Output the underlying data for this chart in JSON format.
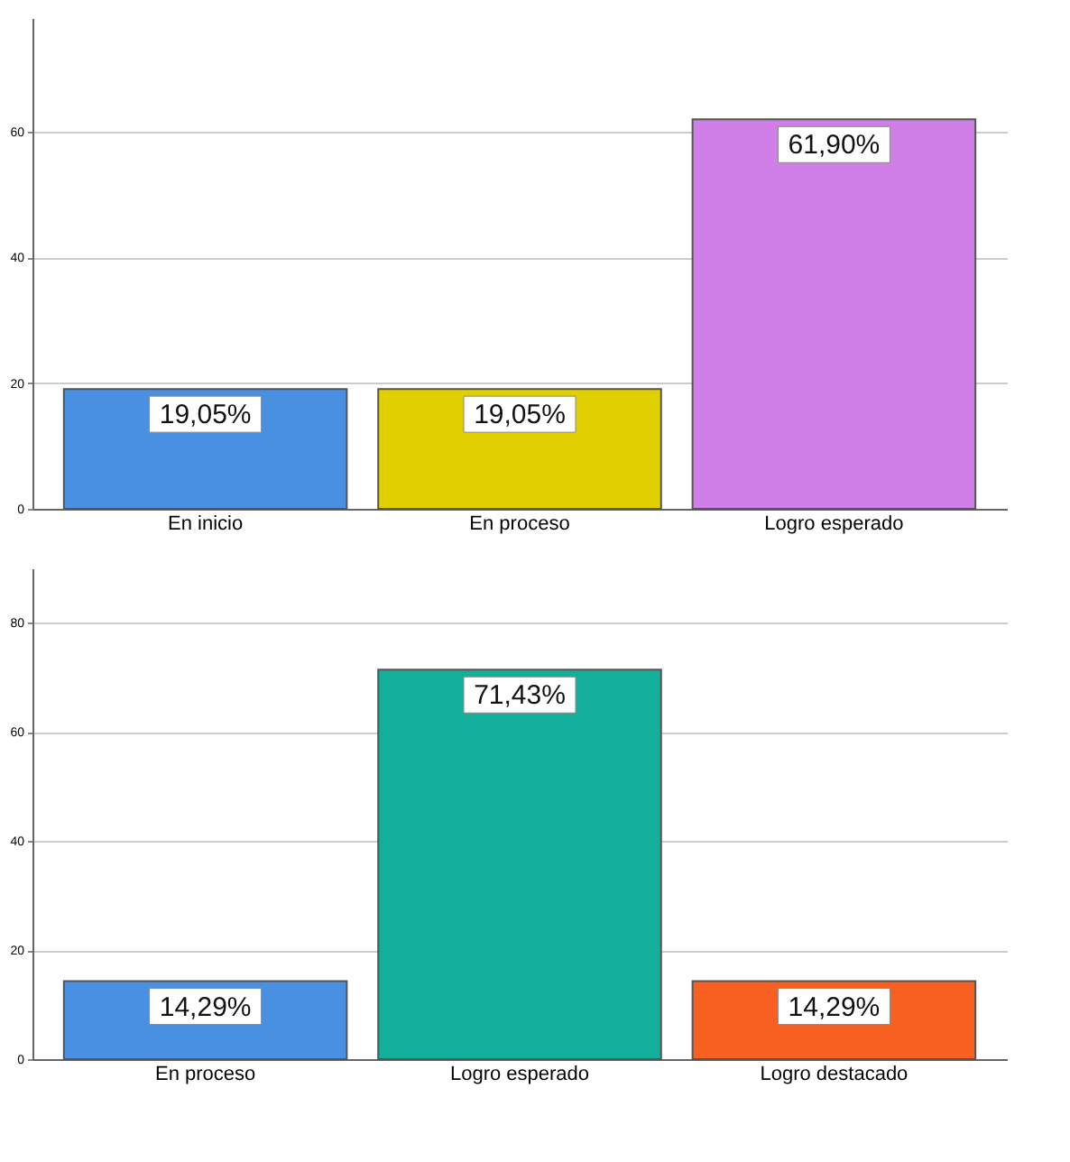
{
  "chart_data": [
    {
      "type": "bar",
      "categories": [
        "En inicio",
        "En proceso",
        "Logro esperado"
      ],
      "values": [
        19.05,
        19.05,
        61.9
      ],
      "colors": [
        "#4a90e2",
        "#e0d000",
        "#d07ee8"
      ],
      "value_labels": [
        "19,05%",
        "19,05%",
        "61,90%"
      ],
      "ylim": [
        0,
        78
      ],
      "yticks": [
        0,
        20,
        40,
        60
      ],
      "grid": "y"
    },
    {
      "type": "bar",
      "categories": [
        "En proceso",
        "Logro esperado",
        "Logro destacado"
      ],
      "values": [
        14.29,
        71.43,
        14.29
      ],
      "colors": [
        "#4a90e2",
        "#12b09a",
        "#f86022"
      ],
      "value_labels": [
        "14,29%",
        "71,43%",
        "14,29%"
      ],
      "ylim": [
        0,
        90
      ],
      "yticks": [
        0,
        20,
        40,
        60,
        80
      ],
      "grid": "y"
    }
  ]
}
